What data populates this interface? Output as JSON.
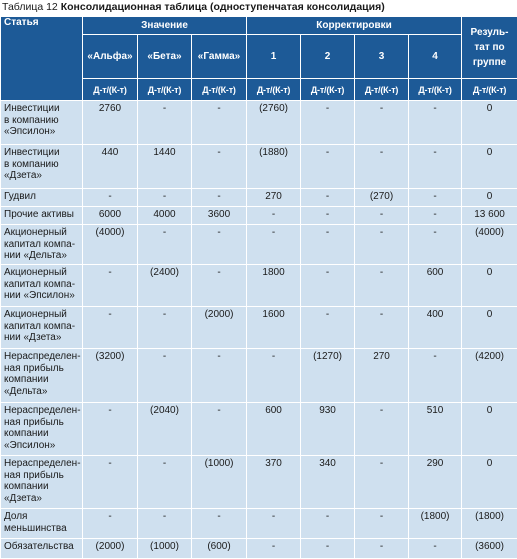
{
  "caption": {
    "number": "Таблица 12",
    "title": "Консолидационная таблица (одноступенчатая консолидация)"
  },
  "header": {
    "statya": "Статья",
    "znachenie": "Значение",
    "korrektirovki": "Корректировки",
    "result": [
      "Резуль-",
      "тат по",
      "группе"
    ],
    "companies": [
      "«Альфа»",
      "«Бета»",
      "«Гамма»"
    ],
    "adj_numbers": [
      "1",
      "2",
      "3",
      "4"
    ],
    "dtk": "Д-т/(К-т)"
  },
  "rows": [
    {
      "label": [
        "Инвестиции",
        "в компанию",
        "«Эпсилон»"
      ],
      "values": [
        "2760",
        "-",
        "-",
        "(2760)",
        "-",
        "-",
        "-",
        "0"
      ]
    },
    {
      "label": [
        "Инвестиции",
        "в компанию",
        "«Дзета»"
      ],
      "values": [
        "440",
        "1440",
        "-",
        "(1880)",
        "-",
        "-",
        "-",
        "0"
      ]
    },
    {
      "label": [
        "Гудвил"
      ],
      "values": [
        "-",
        "-",
        "-",
        "270",
        "-",
        "(270)",
        "-",
        "0"
      ]
    },
    {
      "label": [
        "Прочие активы"
      ],
      "values": [
        "6000",
        "4000",
        "3600",
        "-",
        "-",
        "-",
        "-",
        "13 600"
      ]
    },
    {
      "label": [
        "Акционерный",
        "капитал компа-",
        "нии «Дельта»"
      ],
      "values": [
        "(4000)",
        "-",
        "-",
        "-",
        "-",
        "-",
        "-",
        "(4000)"
      ]
    },
    {
      "label": [
        "Акционерный",
        "капитал компа-",
        "нии «Эпсилон»"
      ],
      "values": [
        "-",
        "(2400)",
        "-",
        "1800",
        "-",
        "-",
        "600",
        "0"
      ]
    },
    {
      "label": [
        "Акционерный",
        "капитал компа-",
        "нии «Дзета»"
      ],
      "values": [
        "-",
        "-",
        "(2000)",
        "1600",
        "-",
        "-",
        "400",
        "0"
      ]
    },
    {
      "label": [
        "Нераспределен-",
        "ная прибыль",
        "компании",
        "«Дельта»"
      ],
      "values": [
        "(3200)",
        "-",
        "-",
        "-",
        "(1270)",
        "270",
        "-",
        "(4200)"
      ]
    },
    {
      "label": [
        "Нераспределен-",
        "ная прибыль",
        "компании",
        "«Эпсилон»"
      ],
      "values": [
        "-",
        "(2040)",
        "-",
        "600",
        "930",
        "-",
        "510",
        "0"
      ]
    },
    {
      "label": [
        "Нераспределен-",
        "ная прибыль",
        "компании",
        "«Дзета»"
      ],
      "values": [
        "-",
        "-",
        "(1000)",
        "370",
        "340",
        "-",
        "290",
        "0"
      ]
    },
    {
      "label": [
        "Доля",
        "меньшинства"
      ],
      "values": [
        "-",
        "-",
        "-",
        "-",
        "-",
        "-",
        "(1800)",
        "(1800)"
      ]
    },
    {
      "label": [
        "Обязательства"
      ],
      "values": [
        "(2000)",
        "(1000)",
        "(600)",
        "-",
        "-",
        "-",
        "-",
        "(3600)"
      ]
    }
  ]
}
